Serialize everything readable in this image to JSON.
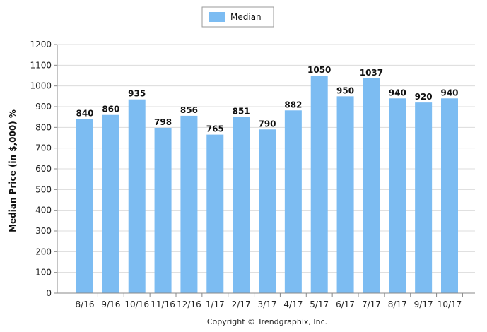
{
  "chart_data": {
    "type": "bar",
    "categories": [
      "8/16",
      "9/16",
      "10/16",
      "11/16",
      "12/16",
      "1/17",
      "2/17",
      "3/17",
      "4/17",
      "5/17",
      "6/17",
      "7/17",
      "8/17",
      "9/17",
      "10/17"
    ],
    "series": [
      {
        "name": "Median",
        "values": [
          840,
          860,
          935,
          798,
          856,
          765,
          851,
          790,
          882,
          1050,
          950,
          1037,
          940,
          920,
          940
        ],
        "color": "#7cbcf2"
      }
    ],
    "ylabel": "Median Price (in $,000) %",
    "ylim": [
      0,
      1200
    ],
    "yticks": [
      0,
      100,
      200,
      300,
      400,
      500,
      600,
      700,
      800,
      900,
      1000,
      1100,
      1200
    ],
    "grid": true,
    "legend_position": "top-center"
  },
  "footer": {
    "copyright": "Copyright © Trendgraphix, Inc."
  }
}
